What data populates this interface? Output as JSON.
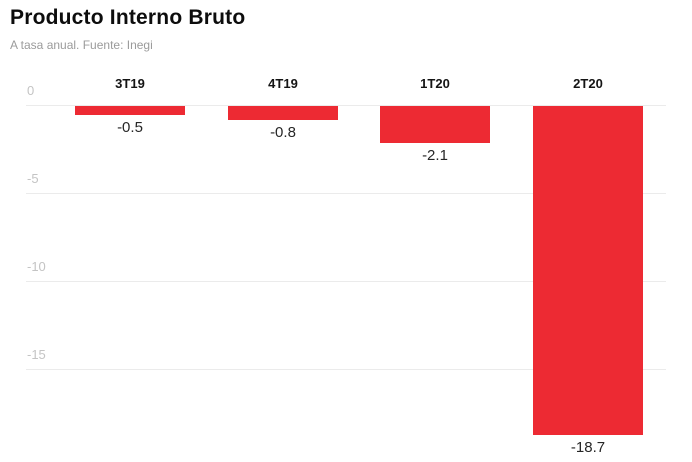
{
  "header": {
    "title": "Producto Interno Bruto",
    "subtitle": "A tasa anual. Fuente: Inegi"
  },
  "chart_data": {
    "type": "bar",
    "title": "Producto Interno Bruto",
    "subtitle": "A tasa anual. Fuente: Inegi",
    "categories": [
      "3T19",
      "4T19",
      "1T20",
      "2T20"
    ],
    "values": [
      -0.5,
      -0.8,
      -2.1,
      -18.7
    ],
    "value_labels": [
      "-0.5",
      "-0.8",
      "-2.1",
      "-18.7"
    ],
    "yticks": [
      0,
      -5,
      -10,
      -15
    ],
    "ytick_labels": [
      "0",
      "-5",
      "-10",
      "-15"
    ],
    "ylim": [
      -20.2,
      0
    ],
    "xlabel": "",
    "ylabel": "",
    "grid": true,
    "legend": false,
    "colors": {
      "bar": "#ed2a33",
      "grid": "#ebebeb",
      "tick_label": "#c4c4c4",
      "category_label": "#141414",
      "value_label": "#262626",
      "title": "#0d0d0d",
      "subtitle": "#9b9b9b",
      "background": "#ffffff"
    }
  }
}
